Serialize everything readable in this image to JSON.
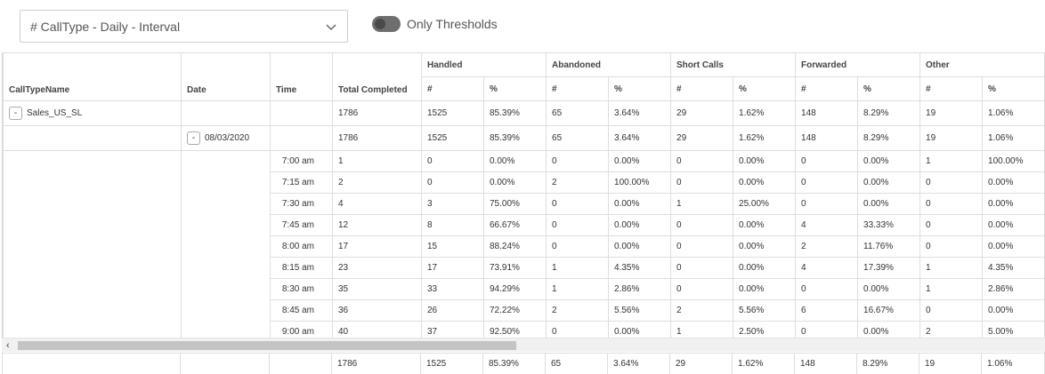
{
  "report_select": {
    "value": "# CallType - Daily - Interval"
  },
  "toggle": {
    "label": "Only Thresholds"
  },
  "columns": {
    "calltype": "CallTypeName",
    "date": "Date",
    "time": "Time",
    "total": "Total Completed",
    "groups": [
      "Handled",
      "Abandoned",
      "Short Calls",
      "Forwarded",
      "Other"
    ],
    "num": "#",
    "pct": "%"
  },
  "summary_row": {
    "calltype": "Sales_US_SL",
    "values": [
      "1786",
      "1525",
      "85.39%",
      "65",
      "3.64%",
      "29",
      "1.62%",
      "148",
      "8.29%",
      "19",
      "1.06%"
    ]
  },
  "date_row": {
    "date": "08/03/2020",
    "values": [
      "1786",
      "1525",
      "85.39%",
      "65",
      "3.64%",
      "29",
      "1.62%",
      "148",
      "8.29%",
      "19",
      "1.06%"
    ]
  },
  "rows": [
    {
      "time": "7:00 am",
      "values": [
        "1",
        "0",
        "0.00%",
        "0",
        "0.00%",
        "0",
        "0.00%",
        "0",
        "0.00%",
        "1",
        "100.00%"
      ]
    },
    {
      "time": "7:15 am",
      "values": [
        "2",
        "0",
        "0.00%",
        "2",
        "100.00%",
        "0",
        "0.00%",
        "0",
        "0.00%",
        "0",
        "0.00%"
      ]
    },
    {
      "time": "7:30 am",
      "values": [
        "4",
        "3",
        "75.00%",
        "0",
        "0.00%",
        "1",
        "25.00%",
        "0",
        "0.00%",
        "0",
        "0.00%"
      ]
    },
    {
      "time": "7:45 am",
      "values": [
        "12",
        "8",
        "66.67%",
        "0",
        "0.00%",
        "0",
        "0.00%",
        "4",
        "33.33%",
        "0",
        "0.00%"
      ]
    },
    {
      "time": "8:00 am",
      "values": [
        "17",
        "15",
        "88.24%",
        "0",
        "0.00%",
        "0",
        "0.00%",
        "2",
        "11.76%",
        "0",
        "0.00%"
      ]
    },
    {
      "time": "8:15 am",
      "values": [
        "23",
        "17",
        "73.91%",
        "1",
        "4.35%",
        "0",
        "0.00%",
        "4",
        "17.39%",
        "1",
        "4.35%"
      ]
    },
    {
      "time": "8:30 am",
      "values": [
        "35",
        "33",
        "94.29%",
        "1",
        "2.86%",
        "0",
        "0.00%",
        "0",
        "0.00%",
        "1",
        "2.86%"
      ]
    },
    {
      "time": "8:45 am",
      "values": [
        "36",
        "26",
        "72.22%",
        "2",
        "5.56%",
        "2",
        "5.56%",
        "6",
        "16.67%",
        "0",
        "0.00%"
      ]
    },
    {
      "time": "9:00 am",
      "values": [
        "40",
        "37",
        "92.50%",
        "0",
        "0.00%",
        "1",
        "2.50%",
        "0",
        "0.00%",
        "2",
        "5.00%"
      ]
    }
  ],
  "footer_row": {
    "values": [
      "1786",
      "1525",
      "85.39%",
      "65",
      "3.64%",
      "29",
      "1.62%",
      "148",
      "8.29%",
      "19",
      "1.06%"
    ]
  },
  "scroll": {
    "left_arrow": "‹"
  },
  "expander_symbol": "-"
}
